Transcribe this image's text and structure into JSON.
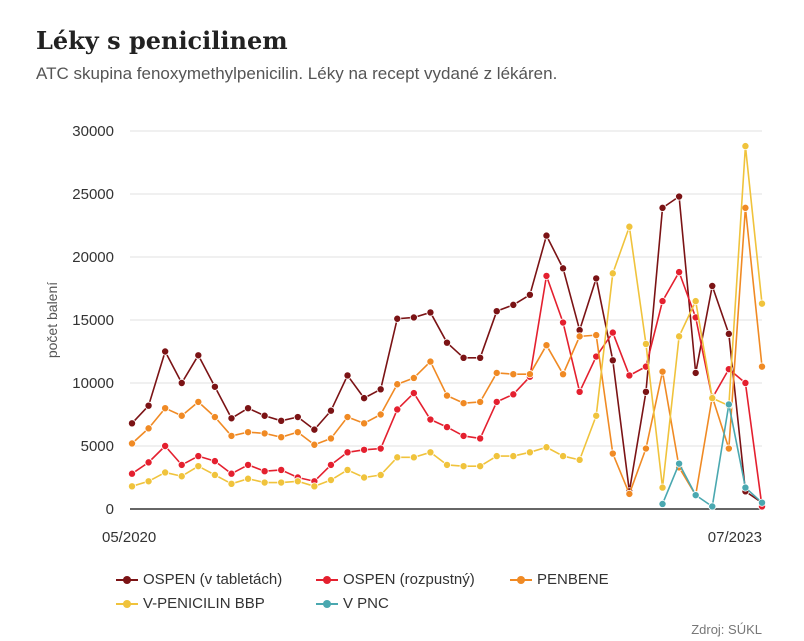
{
  "header": {
    "title": "Léky s penicilinem",
    "subtitle": "ATC skupina fenoxymethylpenicilin. Léky na recept vydané z lékáren."
  },
  "source": "Zdroj: SÚKL",
  "chart_data": {
    "type": "line",
    "title": "Léky s penicilinem",
    "ylabel": "počet balení",
    "xlabel": "",
    "ylim": [
      0,
      30000
    ],
    "yticks": [
      0,
      5000,
      10000,
      15000,
      20000,
      25000,
      30000
    ],
    "x_tick_labels": [
      {
        "index": 0,
        "label": "05/2020"
      },
      {
        "index": 38,
        "label": "07/2023"
      }
    ],
    "grid": true,
    "legend_position": "bottom",
    "series": [
      {
        "name": "OSPEN (v tabletách)",
        "color": "#7b1315",
        "start": 0,
        "values": [
          6800,
          8200,
          12500,
          10000,
          12200,
          9700,
          7200,
          8000,
          7400,
          7000,
          7300,
          6300,
          7800,
          10600,
          8800,
          9500,
          15100,
          15200,
          15600,
          13200,
          12000,
          12000,
          15700,
          16200,
          17000,
          21700,
          19100,
          14200,
          18300,
          11800,
          1400,
          9300,
          23900,
          24800,
          10800,
          17700,
          13900,
          1400,
          500
        ]
      },
      {
        "name": "OSPEN (rozpustný)",
        "color": "#e4202f",
        "start": 0,
        "values": [
          2800,
          3700,
          5000,
          3500,
          4200,
          3800,
          2800,
          3500,
          3000,
          3100,
          2500,
          2200,
          3500,
          4500,
          4700,
          4800,
          7900,
          9200,
          7100,
          6500,
          5800,
          5600,
          8500,
          9100,
          10500,
          18500,
          14800,
          9300,
          12100,
          14000,
          10600,
          11300,
          16500,
          18800,
          15200,
          8800,
          11100,
          10000,
          200
        ]
      },
      {
        "name": "PENBENE",
        "color": "#f08a24",
        "start": 0,
        "values": [
          5200,
          6400,
          8000,
          7400,
          8500,
          7300,
          5800,
          6100,
          6000,
          5700,
          6100,
          5100,
          5600,
          7300,
          6800,
          7500,
          9900,
          10400,
          11700,
          9000,
          8400,
          8500,
          10800,
          10700,
          10700,
          13000,
          10700,
          13700,
          13800,
          4400,
          1200,
          4800,
          10900,
          3300,
          1100,
          8900,
          4800,
          23900,
          11300
        ]
      },
      {
        "name": "V-PENICILIN BBP",
        "color": "#f0c33c",
        "start": 0,
        "values": [
          1800,
          2200,
          2900,
          2600,
          3400,
          2700,
          2000,
          2400,
          2100,
          2100,
          2200,
          1800,
          2300,
          3100,
          2500,
          2700,
          4100,
          4100,
          4500,
          3500,
          3400,
          3400,
          4200,
          4200,
          4500,
          4900,
          4200,
          3900,
          7400,
          18700,
          22400,
          13100,
          1700,
          13700,
          16500,
          8800,
          8200,
          28800,
          16300
        ]
      },
      {
        "name": "V PNC",
        "color": "#4aa8b0",
        "start": 32,
        "values": [
          400,
          3600,
          1100,
          200,
          8300,
          1700,
          500
        ]
      }
    ]
  }
}
